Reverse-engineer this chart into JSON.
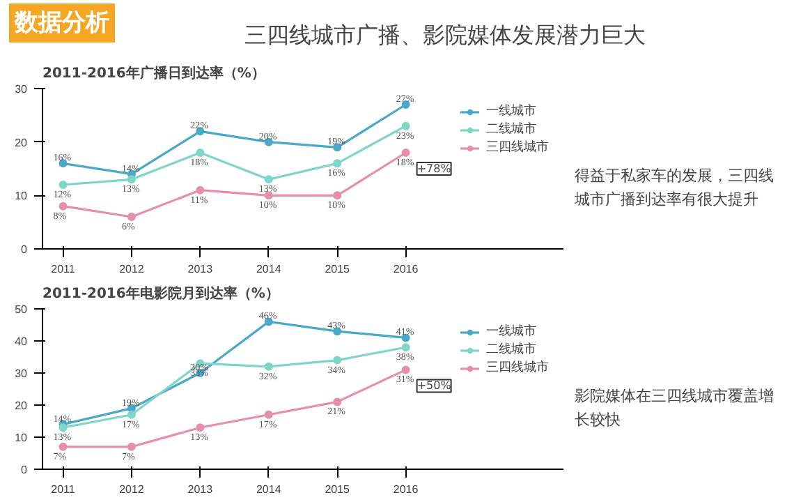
{
  "chart_data": [
    {
      "type": "line",
      "title": "2011-2016年广播日到达率（%）",
      "categories": [
        "2011",
        "2012",
        "2013",
        "2014",
        "2015",
        "2016"
      ],
      "ylim": [
        0,
        30
      ],
      "yticks": [
        0,
        10,
        20,
        30
      ],
      "marker": "circle",
      "legend": "right",
      "grid": false,
      "series": [
        {
          "name": "一线城市",
          "color": "#4aa8c8",
          "values": [
            16,
            14,
            22,
            20,
            19,
            27
          ],
          "value_labels": [
            "16%",
            "14%",
            "22%",
            "20%",
            "19%",
            "27%"
          ]
        },
        {
          "name": "二线城市",
          "color": "#7fd6c8",
          "values": [
            12,
            13,
            18,
            13,
            16,
            23
          ],
          "value_labels": [
            "12%",
            "13%",
            "18%",
            "13%",
            "16%",
            "23%"
          ]
        },
        {
          "name": "三四线城市",
          "color": "#e58fa8",
          "values": [
            8,
            6,
            11,
            10,
            10,
            18
          ],
          "value_labels": [
            "8%",
            "6%",
            "11%",
            "10%",
            "10%",
            "18%"
          ]
        }
      ],
      "annotations": [
        "数据分析",
        "三四线城市广播、影院媒体发展潜力巨大",
        {
          "text": "+78%",
          "x": "2016",
          "y": 18
        },
        "得益于私家车的发展，三四线城市广播到达率有很大提升"
      ]
    },
    {
      "type": "line",
      "title": "2011-2016年电影院月到达率（%）",
      "categories": [
        "2011",
        "2012",
        "2013",
        "2014",
        "2015",
        "2016"
      ],
      "ylim": [
        0,
        50
      ],
      "yticks": [
        0,
        10,
        20,
        30,
        40,
        50
      ],
      "marker": "circle",
      "legend": "right",
      "grid": false,
      "series": [
        {
          "name": "一线城市",
          "color": "#4aa8c8",
          "values": [
            14,
            19,
            30,
            46,
            43,
            41
          ],
          "value_labels": [
            "14%",
            "19%",
            "30%",
            "46%",
            "43%",
            "41%"
          ]
        },
        {
          "name": "二线城市",
          "color": "#7fd6c8",
          "values": [
            13,
            17,
            33,
            32,
            34,
            38
          ],
          "value_labels": [
            "13%",
            "17%",
            "33%",
            "32%",
            "34%",
            "38%"
          ]
        },
        {
          "name": "三四线城市",
          "color": "#e58fa8",
          "values": [
            7,
            7,
            13,
            17,
            21,
            31
          ],
          "value_labels": [
            "7%",
            "7%",
            "13%",
            "17%",
            "21%",
            "31%"
          ]
        }
      ],
      "annotations": [
        {
          "text": "+50%",
          "x": "2016",
          "y": 31
        },
        "影院媒体在三四线城市覆盖增长较快"
      ]
    }
  ]
}
